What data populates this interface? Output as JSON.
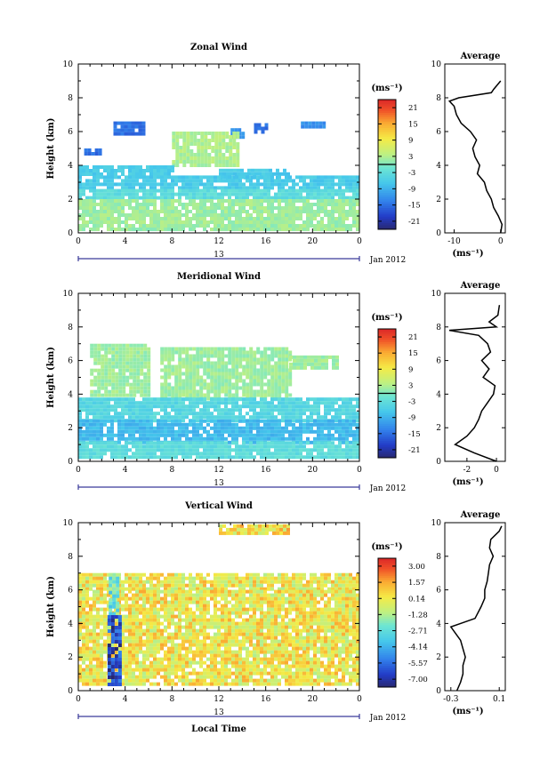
{
  "chart_data": [
    {
      "type": "heatmap",
      "title": "Zonal Wind",
      "ylabel": "Height (km)",
      "xlabel": "",
      "x_ticks": [
        "0",
        "4",
        "8",
        "12",
        "16",
        "20",
        "0"
      ],
      "y_ticks": [
        "0",
        "2",
        "4",
        "6",
        "8",
        "10"
      ],
      "xlim": [
        0,
        24
      ],
      "ylim": [
        0,
        10
      ],
      "day_label": "13",
      "date_label": "Jan 2012",
      "colorbar": {
        "unit": "(ms⁻¹)",
        "ticks": [
          "21",
          "15",
          "9",
          "3",
          "-3",
          "-9",
          "-15",
          "-21"
        ],
        "range": [
          -24,
          24
        ],
        "zero_line": 0
      },
      "regions": [
        {
          "x": [
            3,
            5.5
          ],
          "y": [
            5.8,
            6.6
          ],
          "v": -15
        },
        {
          "x": [
            0.5,
            2
          ],
          "y": [
            4.6,
            5.0
          ],
          "v": -15
        },
        {
          "x": [
            19,
            21
          ],
          "y": [
            6.3,
            6.6
          ],
          "v": -12
        },
        {
          "x": [
            13,
            14
          ],
          "y": [
            5.7,
            6.2
          ],
          "v": -12
        },
        {
          "x": [
            15,
            16
          ],
          "y": [
            6.0,
            6.5
          ],
          "v": -15
        },
        {
          "x": [
            8,
            13.5
          ],
          "y": [
            4,
            6
          ],
          "v": 3
        },
        {
          "x": [
            0,
            8
          ],
          "y": [
            3.4,
            4.0
          ],
          "v": -6
        },
        {
          "x": [
            12,
            18
          ],
          "y": [
            3.2,
            3.8
          ],
          "v": -6
        },
        {
          "x": [
            0,
            24
          ],
          "y": [
            2.6,
            3.4
          ],
          "v": -6
        },
        {
          "x": [
            0,
            24
          ],
          "y": [
            2.0,
            2.6
          ],
          "v": -3
        },
        {
          "x": [
            0,
            24
          ],
          "y": [
            0.3,
            2.0
          ],
          "v": 2
        }
      ],
      "average_profile": {
        "title": "Average",
        "xlabel": "(ms⁻¹)",
        "x_ticks": [
          "-10",
          "0"
        ],
        "xlim": [
          -12,
          1
        ],
        "y_ticks": [
          "0",
          "2",
          "4",
          "6",
          "8",
          "10"
        ],
        "height": [
          0,
          0.5,
          1,
          1.5,
          2,
          2.5,
          3,
          3.5,
          4,
          4.5,
          5,
          5.5,
          6,
          6.5,
          7,
          7.5,
          7.8,
          8.0,
          8.3,
          8.5,
          9
        ],
        "value": [
          0,
          0.3,
          -0.5,
          -1.5,
          -2,
          -3,
          -3.5,
          -5,
          -4.5,
          -5.5,
          -6,
          -5.2,
          -6.5,
          -8.5,
          -9.5,
          -10,
          -11,
          -9,
          -2,
          -1.5,
          0
        ]
      }
    },
    {
      "type": "heatmap",
      "title": "Meridional Wind",
      "ylabel": "Height (km)",
      "xlabel": "",
      "x_ticks": [
        "0",
        "4",
        "8",
        "12",
        "16",
        "20",
        "0"
      ],
      "y_ticks": [
        "0",
        "2",
        "4",
        "6",
        "8",
        "10"
      ],
      "xlim": [
        0,
        24
      ],
      "ylim": [
        0,
        10
      ],
      "day_label": "13",
      "date_label": "Jan 2012",
      "colorbar": {
        "unit": "(ms⁻¹)",
        "ticks": [
          "21",
          "15",
          "9",
          "3",
          "-3",
          "-9",
          "-15",
          "-21"
        ],
        "range": [
          -24,
          24
        ],
        "zero_line": 0
      },
      "regions": [
        {
          "x": [
            1,
            6
          ],
          "y": [
            4.0,
            7.0
          ],
          "v": 2
        },
        {
          "x": [
            7,
            18
          ],
          "y": [
            3.8,
            6.8
          ],
          "v": 2
        },
        {
          "x": [
            18,
            22
          ],
          "y": [
            5.5,
            6.3
          ],
          "v": 2
        },
        {
          "x": [
            0,
            24
          ],
          "y": [
            2.5,
            3.8
          ],
          "v": -4
        },
        {
          "x": [
            0,
            24
          ],
          "y": [
            1.2,
            2.5
          ],
          "v": -8
        },
        {
          "x": [
            0,
            24
          ],
          "y": [
            0.3,
            1.2
          ],
          "v": -3
        }
      ],
      "average_profile": {
        "title": "Average",
        "xlabel": "(ms⁻¹)",
        "x_ticks": [
          "-2",
          "0"
        ],
        "xlim": [
          -3.5,
          0.6
        ],
        "y_ticks": [
          "0",
          "2",
          "4",
          "6",
          "8",
          "10"
        ],
        "height": [
          0,
          0.5,
          1,
          1.5,
          2,
          2.5,
          3,
          3.5,
          4,
          4.5,
          5,
          5.5,
          6,
          6.5,
          7,
          7.5,
          7.8,
          8,
          8.3,
          8.7,
          9.3
        ],
        "value": [
          0,
          -1.5,
          -2.8,
          -2,
          -1.5,
          -1.2,
          -1,
          -0.6,
          -0.2,
          -0.1,
          -0.9,
          -0.5,
          -1,
          -0.4,
          -0.6,
          -1.2,
          -3.2,
          0,
          -0.5,
          0.1,
          0.2
        ]
      }
    },
    {
      "type": "heatmap",
      "title": "Vertical Wind",
      "ylabel": "Height (km)",
      "xlabel": "Local Time",
      "x_ticks": [
        "0",
        "4",
        "8",
        "12",
        "16",
        "20",
        "0"
      ],
      "y_ticks": [
        "0",
        "2",
        "4",
        "6",
        "8",
        "10"
      ],
      "xlim": [
        0,
        24
      ],
      "ylim": [
        0,
        10
      ],
      "day_label": "13",
      "date_label": "Jan 2012",
      "colorbar": {
        "unit": "(ms⁻¹)",
        "ticks": [
          "3.00",
          "1.57",
          "0.14",
          "-1.28",
          "-2.71",
          "-4.14",
          "-5.57",
          "-7.00"
        ],
        "range": [
          -7.7,
          3.7
        ]
      },
      "regions": [
        {
          "x": [
            12,
            18
          ],
          "y": [
            9.3,
            9.9
          ],
          "v": 0.4
        },
        {
          "x": [
            0,
            24
          ],
          "y": [
            6,
            7
          ],
          "v": 0.1
        },
        {
          "x": [
            0,
            24
          ],
          "y": [
            0.4,
            6
          ],
          "v": 0.2
        },
        {
          "x": [
            2.6,
            3.4
          ],
          "y": [
            4.5,
            7
          ],
          "v": -2.4
        },
        {
          "x": [
            2.5,
            3.5
          ],
          "y": [
            0.4,
            4.5
          ],
          "v": -6.5
        }
      ],
      "average_profile": {
        "title": "Average",
        "xlabel": "(ms⁻¹)",
        "x_ticks": [
          "-0.3",
          "0.1"
        ],
        "xlim": [
          -0.35,
          0.15
        ],
        "y_ticks": [
          "0",
          "2",
          "4",
          "6",
          "8",
          "10"
        ],
        "height": [
          0,
          0.5,
          1,
          1.5,
          2,
          2.5,
          3,
          3.5,
          3.8,
          4,
          4.3,
          5,
          5.5,
          6,
          6.5,
          7,
          7.5,
          8,
          8.5,
          9,
          9.5,
          9.8
        ],
        "value": [
          -0.25,
          -0.22,
          -0.2,
          -0.2,
          -0.18,
          -0.2,
          -0.22,
          -0.27,
          -0.3,
          -0.22,
          -0.1,
          -0.05,
          -0.02,
          -0.02,
          0,
          0.01,
          0.02,
          0.05,
          0.02,
          0.03,
          0.1,
          0.12
        ]
      }
    }
  ]
}
